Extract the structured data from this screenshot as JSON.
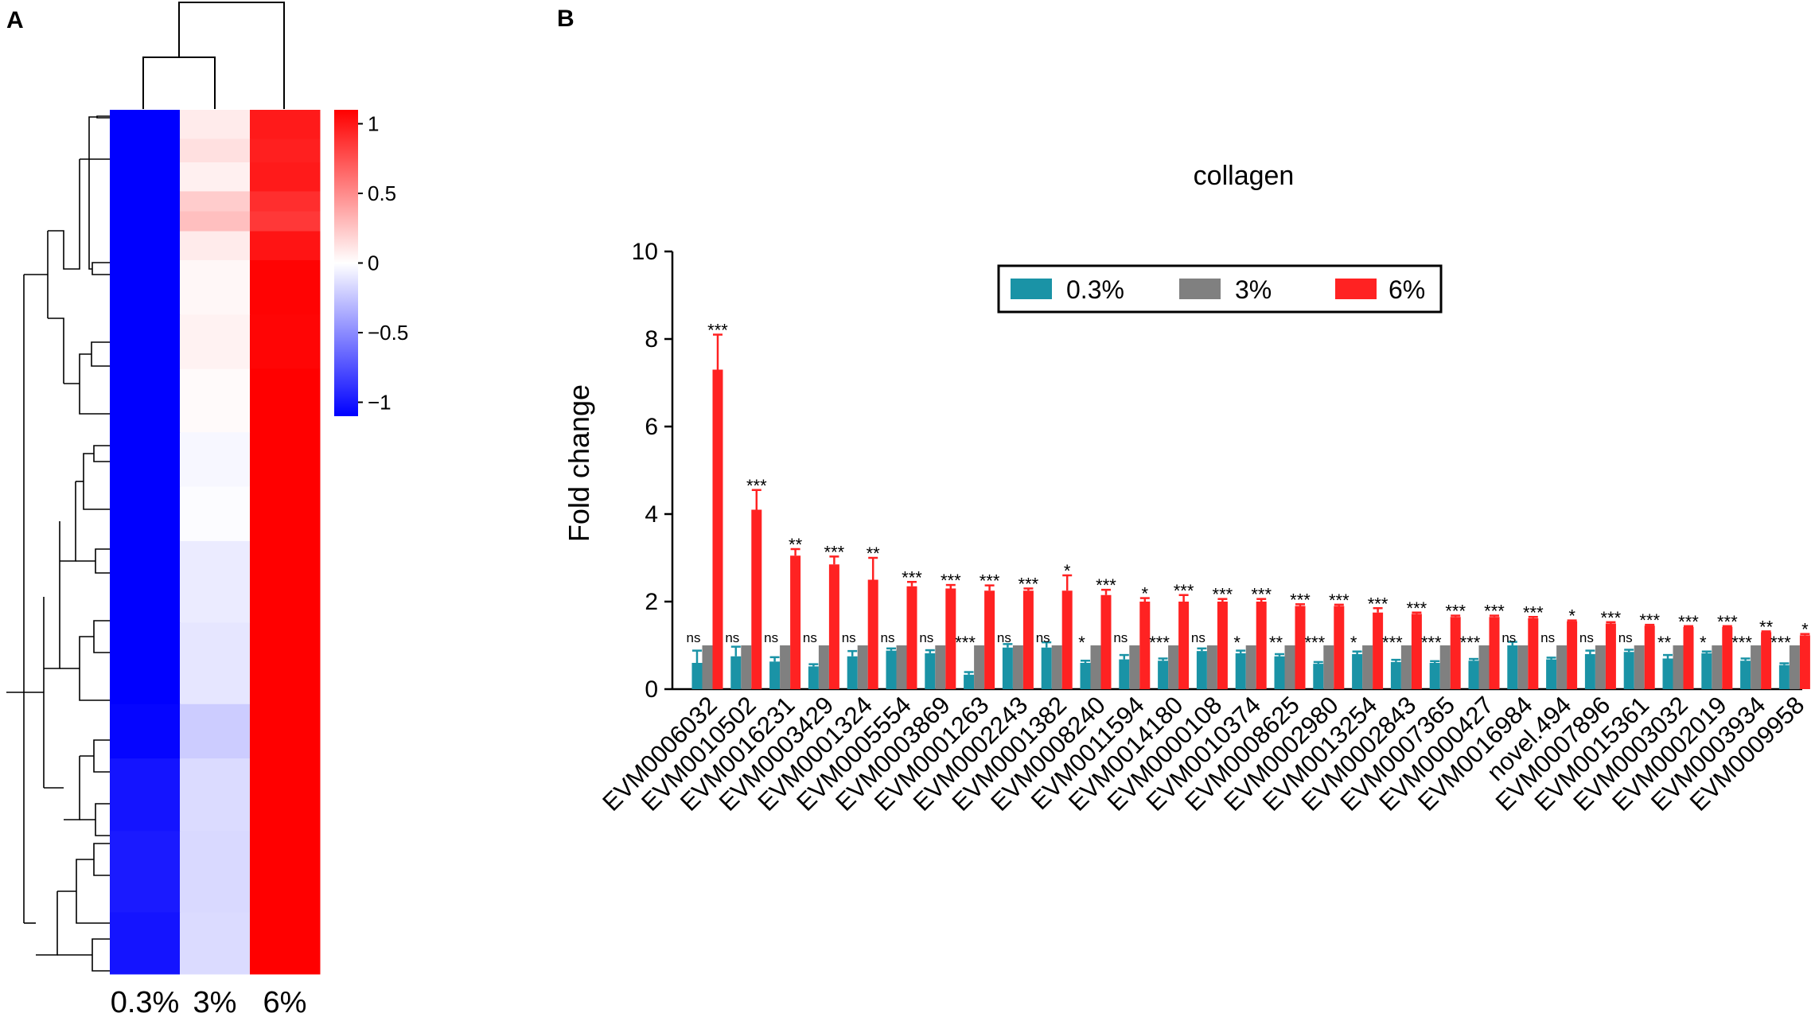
{
  "panel_a": {
    "label": "A",
    "columns": [
      "0.3%",
      "3%",
      "6%"
    ],
    "colorbar_ticks": [
      "1",
      "0.5",
      "0",
      "−0.5",
      "−1"
    ],
    "colorbar_range": [
      -1.1,
      1.1
    ],
    "colors": {
      "low": "#0000ff",
      "mid": "#ffffff",
      "high": "#ff0000"
    }
  },
  "panel_b": {
    "label": "B",
    "legend": [
      "0.3%",
      "3%",
      "6%"
    ]
  },
  "chart_data": [
    {
      "type": "heatmap",
      "title": "",
      "columns": [
        "0.3%",
        "3%",
        "6%"
      ],
      "color_scale": {
        "min": -1,
        "max": 1,
        "low": "#0000ff",
        "mid": "#ffffff",
        "high": "#ff0000"
      },
      "row_blocks": [
        {
          "rows": 16,
          "values": [
            -1.13,
            0.08,
            0.9
          ]
        },
        {
          "rows": 13,
          "values": [
            -1.13,
            0.12,
            0.88
          ]
        },
        {
          "rows": 16,
          "values": [
            -1.13,
            0.06,
            0.9
          ]
        },
        {
          "rows": 11,
          "values": [
            -1.13,
            0.2,
            0.82
          ]
        },
        {
          "rows": 11,
          "values": [
            -1.13,
            0.25,
            0.78
          ]
        },
        {
          "rows": 16,
          "values": [
            -1.12,
            0.08,
            0.92
          ]
        },
        {
          "rows": 30,
          "values": [
            -1.1,
            0.03,
            0.99
          ]
        },
        {
          "rows": 30,
          "values": [
            -1.1,
            0.05,
            0.98
          ]
        },
        {
          "rows": 35,
          "values": [
            -1.09,
            0.02,
            1.0
          ]
        },
        {
          "rows": 30,
          "values": [
            -1.07,
            -0.03,
            1.02
          ]
        },
        {
          "rows": 30,
          "values": [
            -1.06,
            -0.01,
            1.02
          ]
        },
        {
          "rows": 45,
          "values": [
            -1.03,
            -0.08,
            1.05
          ]
        },
        {
          "rows": 45,
          "values": [
            -1.02,
            -0.1,
            1.07
          ]
        },
        {
          "rows": 30,
          "values": [
            -0.98,
            -0.2,
            1.1
          ]
        },
        {
          "rows": 40,
          "values": [
            -0.92,
            -0.14,
            1.12
          ]
        },
        {
          "rows": 45,
          "values": [
            -0.9,
            -0.15,
            1.12
          ]
        },
        {
          "rows": 34,
          "values": [
            -0.92,
            -0.14,
            1.12
          ]
        }
      ]
    },
    {
      "type": "bar",
      "title": "collagen",
      "xlabel": "",
      "ylabel": "Fold change",
      "ylim": [
        0,
        10
      ],
      "yticks": [
        0,
        2,
        4,
        6,
        8,
        10
      ],
      "categories": [
        "EVM0006032",
        "EVM0010502",
        "EVM0016231",
        "EVM0003429",
        "EVM0001324",
        "EVM0005554",
        "EVM0003869",
        "EVM0001263",
        "EVM0002243",
        "EVM0001382",
        "EVM0008240",
        "EVM0011594",
        "EVM0014180",
        "EVM0000108",
        "EVM0010374",
        "EVM0008625",
        "EVM0002980",
        "EVM0013254",
        "EVM0002843",
        "EVM0007365",
        "EVM0000427",
        "EVM0016984",
        "novel.494",
        "EVM0007896",
        "EVM0015361",
        "EVM0003032",
        "EVM0002019",
        "EVM0003934",
        "EVM0009958"
      ],
      "series": [
        {
          "name": "0.3%",
          "color": "#1a93a6",
          "values": [
            0.6,
            0.75,
            0.63,
            0.52,
            0.75,
            0.88,
            0.82,
            0.33,
            0.95,
            0.95,
            0.6,
            0.68,
            0.65,
            0.87,
            0.82,
            0.75,
            0.58,
            0.8,
            0.62,
            0.6,
            0.65,
            1.0,
            0.68,
            0.8,
            0.85,
            0.7,
            0.82,
            0.65,
            0.55
          ],
          "errors": [
            0.28,
            0.22,
            0.1,
            0.05,
            0.12,
            0.05,
            0.07,
            0.06,
            0.08,
            0.12,
            0.05,
            0.1,
            0.05,
            0.06,
            0.06,
            0.05,
            0.04,
            0.06,
            0.05,
            0.04,
            0.04,
            0.08,
            0.04,
            0.08,
            0.05,
            0.08,
            0.04,
            0.05,
            0.04
          ],
          "significance": [
            "ns",
            "ns",
            "ns",
            "ns",
            "ns",
            "ns",
            "ns",
            "***",
            "ns",
            "ns",
            "*",
            "ns",
            "***",
            "ns",
            "*",
            "**",
            "***",
            "*",
            "***",
            "***",
            "***",
            "ns",
            "ns",
            "ns",
            "ns",
            "**",
            "*",
            "***",
            "***"
          ]
        },
        {
          "name": "3%",
          "color": "#808080",
          "values": [
            1,
            1,
            1,
            1,
            1,
            1,
            1,
            1,
            1,
            1,
            1,
            1,
            1,
            1,
            1,
            1,
            1,
            1,
            1,
            1,
            1,
            1,
            1,
            1,
            1,
            1,
            1,
            1,
            1
          ],
          "errors": [
            0,
            0,
            0,
            0,
            0,
            0,
            0,
            0,
            0,
            0,
            0,
            0,
            0,
            0,
            0,
            0,
            0,
            0,
            0,
            0,
            0,
            0,
            0,
            0,
            0,
            0,
            0,
            0,
            0
          ]
        },
        {
          "name": "6%",
          "color": "#ff2222",
          "values": [
            7.3,
            4.1,
            3.05,
            2.85,
            2.5,
            2.35,
            2.3,
            2.25,
            2.25,
            2.25,
            2.15,
            2.0,
            2.0,
            2.0,
            2.0,
            1.9,
            1.9,
            1.75,
            1.72,
            1.65,
            1.65,
            1.62,
            1.55,
            1.5,
            1.45,
            1.42,
            1.42,
            1.3,
            1.23
          ],
          "errors": [
            0.8,
            0.45,
            0.15,
            0.18,
            0.5,
            0.1,
            0.08,
            0.12,
            0.05,
            0.35,
            0.12,
            0.08,
            0.15,
            0.06,
            0.06,
            0.04,
            0.03,
            0.1,
            0.03,
            0.03,
            0.03,
            0.03,
            0.02,
            0.03,
            0.02,
            0.02,
            0.02,
            0.02,
            0.03
          ],
          "significance": [
            "***",
            "***",
            "**",
            "***",
            "**",
            "***",
            "***",
            "***",
            "***",
            "*",
            "***",
            "*",
            "***",
            "***",
            "***",
            "***",
            "***",
            "***",
            "***",
            "***",
            "***",
            "***",
            "*",
            "***",
            "***",
            "***",
            "***",
            "**",
            "*"
          ]
        }
      ],
      "legend_position": "top-center"
    }
  ]
}
